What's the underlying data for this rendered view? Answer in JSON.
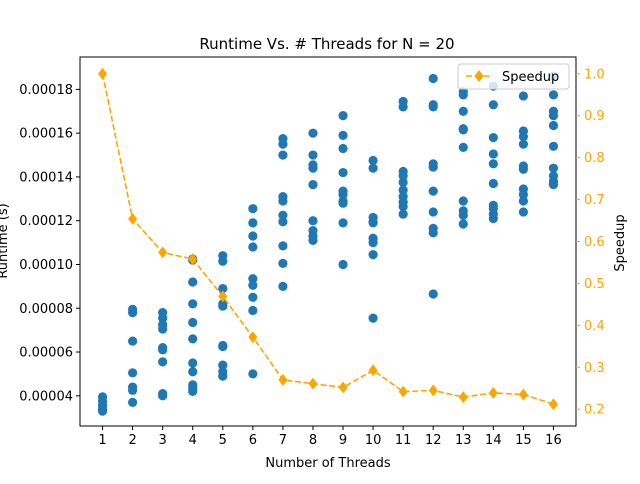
{
  "chart_data": {
    "type": "scatter",
    "title": "Runtime Vs. # Threads for N = 20",
    "xlabel": "Number of Threads",
    "ylabel": "Runtime (s)",
    "y2label": "Speedup",
    "xlim": [
      0.25,
      16.75
    ],
    "ylim": [
      2.62e-05,
      0.0001948
    ],
    "y2lim": [
      0.16,
      1.04
    ],
    "xticks": [
      1,
      2,
      3,
      4,
      5,
      6,
      7,
      8,
      9,
      10,
      11,
      12,
      13,
      14,
      15,
      16
    ],
    "yticks": [
      4e-05,
      6e-05,
      8e-05,
      0.0001,
      0.00012,
      0.00014,
      0.00016,
      0.00018
    ],
    "ytick_labels": [
      "0.00004",
      "0.00006",
      "0.00008",
      "0.00010",
      "0.00012",
      "0.00014",
      "0.00016",
      "0.00018"
    ],
    "y2ticks": [
      0.2,
      0.3,
      0.4,
      0.5,
      0.6,
      0.7,
      0.8,
      0.9,
      1.0
    ],
    "y2tick_labels": [
      "0.2",
      "0.3",
      "0.4",
      "0.5",
      "0.6",
      "0.7",
      "0.8",
      "0.9",
      "1.0"
    ],
    "colors": {
      "runtime": "#1f77b4",
      "speedup": "#ffa500",
      "axis": "#000000"
    },
    "legend": {
      "position": "top-right",
      "entries": [
        "Speedup"
      ]
    },
    "grid": false,
    "series": [
      {
        "axis": "left",
        "style": "markers",
        "points": [
          [
            1,
            3.95e-05
          ],
          [
            1,
            3.75e-05
          ],
          [
            1,
            3.55e-05
          ],
          [
            1,
            3.4e-05
          ],
          [
            1,
            3.3e-05
          ],
          [
            2,
            7.95e-05
          ],
          [
            2,
            7.8e-05
          ],
          [
            2,
            6.5e-05
          ],
          [
            2,
            5.05e-05
          ],
          [
            2,
            4.4e-05
          ],
          [
            2,
            4.25e-05
          ],
          [
            2,
            3.7e-05
          ],
          [
            3,
            7.8e-05
          ],
          [
            3,
            7.55e-05
          ],
          [
            3,
            7.25e-05
          ],
          [
            3,
            7.05e-05
          ],
          [
            3,
            6.2e-05
          ],
          [
            3,
            6.1e-05
          ],
          [
            3,
            5.55e-05
          ],
          [
            3,
            4.1e-05
          ],
          [
            3,
            4e-05
          ],
          [
            4,
            0.0001025
          ],
          [
            4,
            0.000102
          ],
          [
            4,
            9.2e-05
          ],
          [
            4,
            8.2e-05
          ],
          [
            4,
            7.35e-05
          ],
          [
            4,
            6.6e-05
          ],
          [
            4,
            5.5e-05
          ],
          [
            4,
            5.1e-05
          ],
          [
            4,
            4.5e-05
          ],
          [
            4,
            4.35e-05
          ],
          [
            4,
            4.2e-05
          ],
          [
            5,
            0.000104
          ],
          [
            5,
            0.0001015
          ],
          [
            5,
            8.9e-05
          ],
          [
            5,
            8.2e-05
          ],
          [
            5,
            8.1e-05
          ],
          [
            5,
            6.3e-05
          ],
          [
            5,
            6.25e-05
          ],
          [
            5,
            5.4e-05
          ],
          [
            5,
            5.1e-05
          ],
          [
            5,
            4.9e-05
          ],
          [
            6,
            0.0001255
          ],
          [
            6,
            0.000119
          ],
          [
            6,
            0.000113
          ],
          [
            6,
            0.000108
          ],
          [
            6,
            9.35e-05
          ],
          [
            6,
            9.05e-05
          ],
          [
            6,
            8.5e-05
          ],
          [
            6,
            7.9e-05
          ],
          [
            6,
            5e-05
          ],
          [
            7,
            0.0001575
          ],
          [
            7,
            0.000155
          ],
          [
            7,
            0.00015
          ],
          [
            7,
            0.000131
          ],
          [
            7,
            0.000129
          ],
          [
            7,
            0.0001225
          ],
          [
            7,
            0.0001195
          ],
          [
            7,
            0.0001085
          ],
          [
            7,
            0.0001005
          ],
          [
            7,
            9e-05
          ],
          [
            8,
            0.00016
          ],
          [
            8,
            0.00015
          ],
          [
            8,
            0.0001455
          ],
          [
            8,
            0.000144
          ],
          [
            8,
            0.0001365
          ],
          [
            8,
            0.00012
          ],
          [
            8,
            0.0001155
          ],
          [
            8,
            0.000113
          ],
          [
            8,
            0.000111
          ],
          [
            9,
            0.000168
          ],
          [
            9,
            0.000159
          ],
          [
            9,
            0.000153
          ],
          [
            9,
            0.000142
          ],
          [
            9,
            0.0001335
          ],
          [
            9,
            0.000132
          ],
          [
            9,
            0.000129
          ],
          [
            9,
            0.000128
          ],
          [
            9,
            0.000119
          ],
          [
            9,
            0.0001
          ],
          [
            10,
            0.0001475
          ],
          [
            10,
            0.000144
          ],
          [
            10,
            0.0001215
          ],
          [
            10,
            0.0001195
          ],
          [
            10,
            0.000119
          ],
          [
            10,
            0.000112
          ],
          [
            10,
            0.00011
          ],
          [
            10,
            0.0001045
          ],
          [
            10,
            7.55e-05
          ],
          [
            11,
            0.0001745
          ],
          [
            11,
            0.000172
          ],
          [
            11,
            0.0001425
          ],
          [
            11,
            0.0001405
          ],
          [
            11,
            0.0001375
          ],
          [
            11,
            0.000134
          ],
          [
            11,
            0.000131
          ],
          [
            11,
            0.0001285
          ],
          [
            11,
            0.0001265
          ],
          [
            11,
            0.000123
          ],
          [
            12,
            0.000185
          ],
          [
            12,
            0.000173
          ],
          [
            12,
            0.000172
          ],
          [
            12,
            0.000146
          ],
          [
            12,
            0.0001445
          ],
          [
            12,
            0.0001335
          ],
          [
            12,
            0.000124
          ],
          [
            12,
            0.0001165
          ],
          [
            12,
            0.0001145
          ],
          [
            12,
            8.65e-05
          ],
          [
            13,
            0.000179
          ],
          [
            13,
            0.0001775
          ],
          [
            13,
            0.00017
          ],
          [
            13,
            0.000162
          ],
          [
            13,
            0.0001615
          ],
          [
            13,
            0.0001535
          ],
          [
            13,
            0.000129
          ],
          [
            13,
            0.0001245
          ],
          [
            13,
            0.0001225
          ],
          [
            13,
            0.0001185
          ],
          [
            14,
            0.0001815
          ],
          [
            14,
            0.000173
          ],
          [
            14,
            0.000158
          ],
          [
            14,
            0.0001505
          ],
          [
            14,
            0.000146
          ],
          [
            14,
            0.000137
          ],
          [
            14,
            0.000127
          ],
          [
            14,
            0.0001255
          ],
          [
            14,
            0.000123
          ],
          [
            14,
            0.000121
          ],
          [
            15,
            0.000177
          ],
          [
            15,
            0.000161
          ],
          [
            15,
            0.0001585
          ],
          [
            15,
            0.000155
          ],
          [
            15,
            0.000145
          ],
          [
            15,
            0.0001435
          ],
          [
            15,
            0.0001345
          ],
          [
            15,
            0.000132
          ],
          [
            15,
            0.000129
          ],
          [
            15,
            0.000124
          ],
          [
            16,
            0.000186
          ],
          [
            16,
            0.0001775
          ],
          [
            16,
            0.00017
          ],
          [
            16,
            0.000168
          ],
          [
            16,
            0.0001635
          ],
          [
            16,
            0.000154
          ],
          [
            16,
            0.000144
          ],
          [
            16,
            0.0001405
          ],
          [
            16,
            0.000138
          ],
          [
            16,
            0.0001365
          ]
        ]
      },
      {
        "name": "Speedup",
        "axis": "right",
        "style": "dashed-line-diamond",
        "x": [
          1,
          2,
          3,
          4,
          5,
          6,
          7,
          8,
          9,
          10,
          11,
          12,
          13,
          14,
          15,
          16
        ],
        "values": [
          1.0,
          0.654,
          0.574,
          0.558,
          0.469,
          0.372,
          0.27,
          0.261,
          0.252,
          0.293,
          0.242,
          0.245,
          0.229,
          0.239,
          0.235,
          0.212
        ]
      }
    ]
  }
}
